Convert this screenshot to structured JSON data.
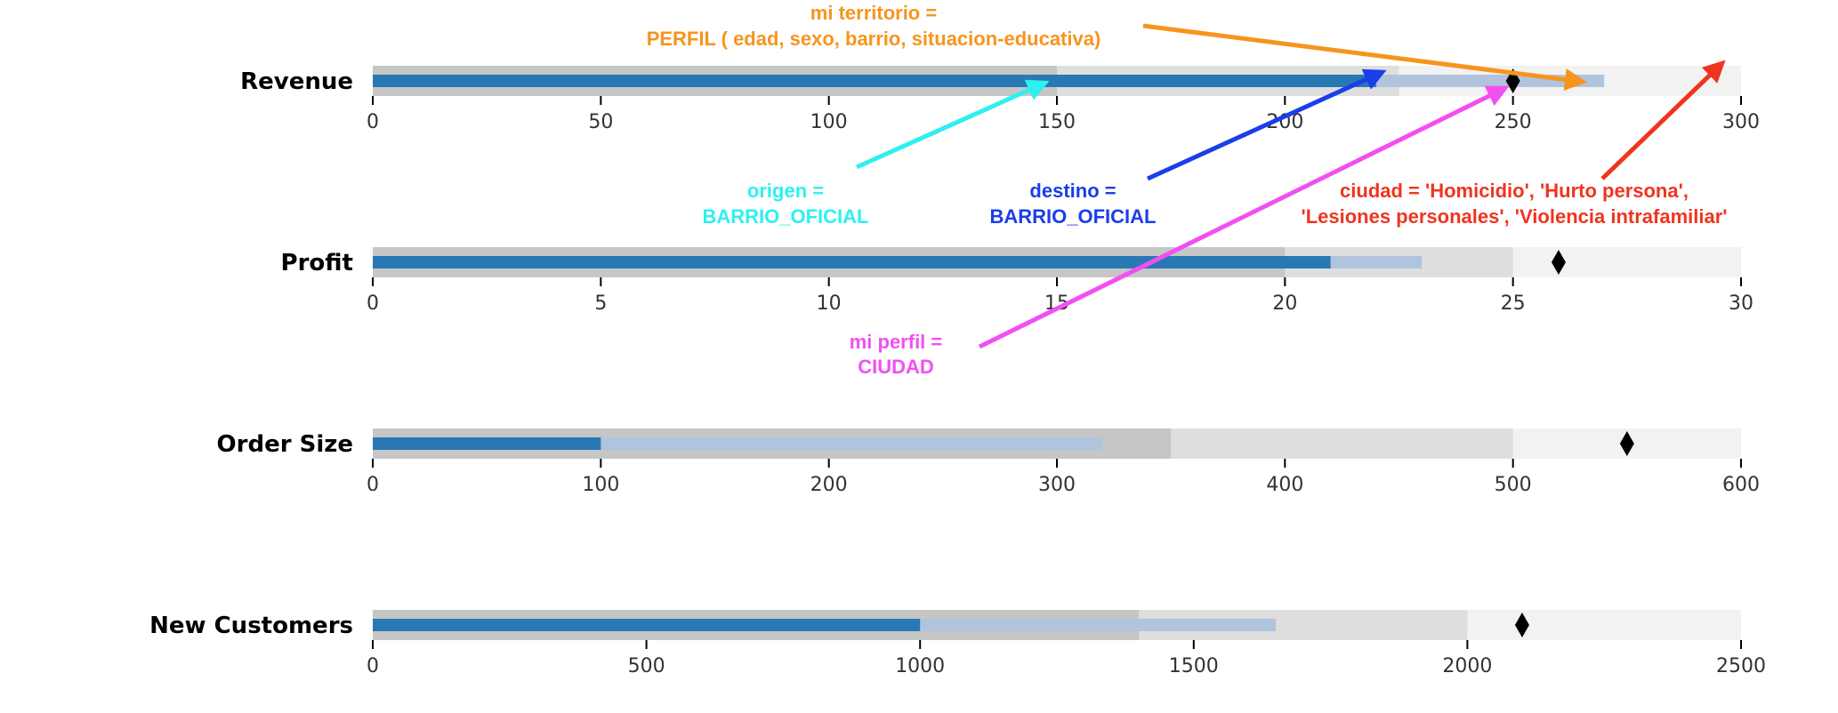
{
  "chart_data": {
    "type": "bullet",
    "series_colors": {
      "range_dark": "#c6c6c6",
      "range_mid": "#dedede",
      "range_light": "#f2f2f2",
      "measure_projected": "#b0c4de",
      "measure_actual": "#2878b4",
      "marker": "#000000"
    },
    "rows": [
      {
        "label": "Revenue",
        "ranges": [
          150,
          225,
          300
        ],
        "measures": [
          220,
          270
        ],
        "marker": 250,
        "xlim": [
          0,
          300
        ],
        "ticks": [
          0,
          50,
          100,
          150,
          200,
          250,
          300
        ]
      },
      {
        "label": "Profit",
        "ranges": [
          20,
          25,
          30
        ],
        "measures": [
          21,
          23
        ],
        "marker": 26,
        "xlim": [
          0,
          30
        ],
        "ticks": [
          0,
          5,
          10,
          15,
          20,
          25,
          30
        ]
      },
      {
        "label": "Order Size",
        "ranges": [
          350,
          500,
          600
        ],
        "measures": [
          100,
          320
        ],
        "marker": 550,
        "xlim": [
          0,
          600
        ],
        "ticks": [
          0,
          100,
          200,
          300,
          400,
          500,
          600
        ]
      },
      {
        "label": "New Customers",
        "ranges": [
          1400,
          2000,
          2500
        ],
        "measures": [
          1000,
          1650
        ],
        "marker": 2100,
        "xlim": [
          0,
          2500
        ],
        "ticks": [
          0,
          500,
          1000,
          1500,
          2000,
          2500
        ]
      }
    ],
    "annotations": [
      {
        "lines": [
          "mi territorio =",
          "PERFIL ( edad, sexo, barrio, situacion-educativa)"
        ],
        "color": "#f7941d",
        "points_to": "Revenue ≈ 267"
      },
      {
        "lines": [
          "origen =",
          "BARRIO_OFICIAL"
        ],
        "color": "#2ef0f0",
        "points_to": "Revenue = 150"
      },
      {
        "lines": [
          "destino =",
          "BARRIO_OFICIAL"
        ],
        "color": "#1a3ee8",
        "points_to": "Revenue = 222"
      },
      {
        "lines": [
          "ciudad = 'Homicidio', 'Hurto persona',",
          "'Lesiones personales', 'Violencia intrafamiliar'"
        ],
        "color": "#f0341e",
        "points_to": "Revenue = 300"
      },
      {
        "lines": [
          "mi perfil =",
          "CIUDAD"
        ],
        "color": "#f24ff2",
        "points_to": "Revenue = 250"
      }
    ]
  }
}
